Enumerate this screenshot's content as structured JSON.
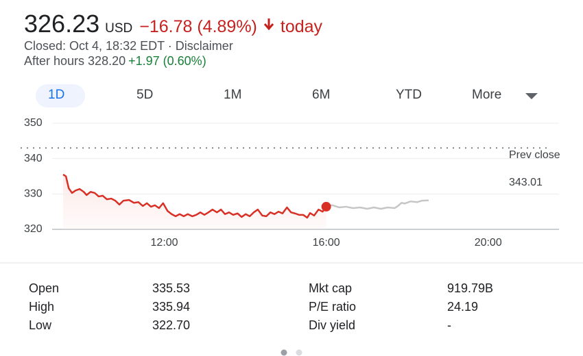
{
  "header": {
    "price": "326.23",
    "currency": "USD",
    "change": "−16.78 (4.89%)",
    "period": "today",
    "status": "Closed: Oct 4, 18:32 EDT · Disclaimer",
    "after_hours": "After hours 328.20",
    "after_hours_change": "+1.97 (0.60%)"
  },
  "tabs": [
    "1D",
    "5D",
    "1M",
    "6M",
    "YTD",
    "More"
  ],
  "chart_data": {
    "type": "line",
    "xlim": [
      9.5,
      21.75
    ],
    "xticks": [
      {
        "value": 12,
        "label": "12:00"
      },
      {
        "value": 16,
        "label": "16:00"
      },
      {
        "value": 20,
        "label": "20:00"
      }
    ],
    "ylim": [
      320,
      350
    ],
    "yticks": [
      320,
      330,
      340,
      350
    ],
    "grid": true,
    "prev_close_label": "Prev close",
    "prev_close": 343.01,
    "series": [
      {
        "color": "#d93025",
        "x": [
          9.5,
          9.57,
          9.64,
          9.72,
          9.81,
          9.91,
          10.01,
          10.08,
          10.18,
          10.28,
          10.38,
          10.48,
          10.58,
          10.69,
          10.79,
          10.89,
          10.99,
          11.13,
          11.25,
          11.36,
          11.47,
          11.57,
          11.67,
          11.77,
          11.87,
          11.97,
          12.08,
          12.18,
          12.28,
          12.38,
          12.48,
          12.58,
          12.69,
          12.79,
          12.89,
          12.99,
          13.09,
          13.19,
          13.3,
          13.4,
          13.5,
          13.6,
          13.7,
          13.81,
          13.91,
          14.01,
          14.11,
          14.21,
          14.31,
          14.42,
          14.52,
          14.62,
          14.72,
          14.82,
          14.92,
          15.03,
          15.13,
          15.23,
          15.33,
          15.43,
          15.53,
          15.6,
          15.7,
          15.81,
          15.91,
          16.0
        ],
        "values": [
          335.5,
          335.0,
          331.6,
          330.3,
          331.0,
          331.4,
          330.6,
          329.7,
          330.6,
          330.3,
          329.3,
          329.5,
          328.5,
          328.7,
          328.1,
          327.0,
          328.1,
          328.3,
          327.5,
          327.7,
          326.6,
          327.4,
          326.4,
          326.8,
          326.0,
          327.4,
          325.2,
          324.3,
          323.7,
          324.3,
          323.7,
          324.3,
          323.7,
          324.1,
          324.8,
          324.1,
          324.8,
          325.6,
          324.8,
          325.6,
          324.3,
          324.8,
          324.1,
          324.5,
          323.5,
          324.3,
          323.7,
          324.8,
          325.6,
          323.9,
          323.7,
          324.8,
          324.3,
          325.0,
          324.5,
          326.2,
          324.8,
          324.5,
          324.1,
          324.1,
          323.3,
          324.6,
          323.9,
          325.6,
          325.0,
          326.4
        ]
      },
      {
        "color": "#c4c7c5",
        "x": [
          16.0,
          16.15,
          16.32,
          16.49,
          16.66,
          16.84,
          17.01,
          17.18,
          17.35,
          17.52,
          17.69,
          17.77,
          17.86,
          17.94,
          18.08,
          18.25,
          18.36,
          18.53
        ],
        "values": [
          326.8,
          326.8,
          326.2,
          326.4,
          326.0,
          326.2,
          325.8,
          326.2,
          325.8,
          326.2,
          326.0,
          326.6,
          327.5,
          327.3,
          327.9,
          327.7,
          328.1,
          328.2
        ]
      }
    ]
  },
  "stats": {
    "rows": [
      [
        "Open",
        "335.53",
        "Mkt cap",
        "919.79B"
      ],
      [
        "High",
        "335.94",
        "P/E ratio",
        "24.19"
      ],
      [
        "Low",
        "322.70",
        "Div yield",
        "-"
      ]
    ]
  }
}
